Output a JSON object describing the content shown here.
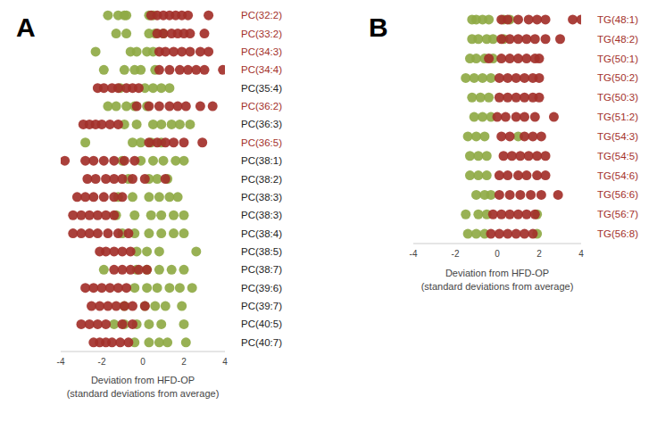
{
  "chart_data": [
    {
      "type": "scatter",
      "title": "A",
      "xlabel": [
        "Deviation from HFD-OP",
        "(standard deviations from average)"
      ],
      "xlim": [
        -4,
        4
      ],
      "xticks": [
        -4,
        -2,
        0,
        2,
        4
      ],
      "categories": [
        "PC(32:2)",
        "PC(33:2)",
        "PC(34:3)",
        "PC(34:4)",
        "PC(35:4)",
        "PC(36:2)",
        "PC(36:3)",
        "PC(36:5)",
        "PC(38:1)",
        "PC(38:2)",
        "PC(38:3)",
        "PC(38:3)",
        "PC(38:4)",
        "PC(38:5)",
        "PC(38:7)",
        "PC(39:6)",
        "PC(39:7)",
        "PC(40:5)",
        "PC(40:7)"
      ],
      "series": [
        {
          "color": "#8faa45",
          "values": [
            [
              -1.7,
              -1.2,
              -0.9,
              -0.8,
              0.3,
              0.5
            ],
            [
              -1.3,
              -0.8,
              0.3,
              0.6,
              1.0
            ],
            [
              -2.3,
              -0.6,
              -0.3,
              0.2,
              0.5
            ],
            [
              -1.9,
              -0.9,
              -0.4,
              -0.1,
              0.6
            ],
            [
              -1.1,
              0.1,
              0.5,
              0.9,
              1.3
            ],
            [
              -1.7,
              -1.3,
              -0.8,
              -0.4,
              0.2
            ],
            [
              -0.9,
              -0.3,
              0.5,
              0.9,
              1.4,
              1.8,
              2.3
            ],
            [
              -2.8,
              -0.5,
              -0.1,
              0.4,
              0.9
            ],
            [
              -1.0,
              -0.1,
              0.5,
              1.0,
              1.6,
              2.0
            ],
            [
              -0.7,
              0.3,
              0.7,
              1.2
            ],
            [
              -1.2,
              -0.5,
              0.3,
              0.8,
              1.3,
              1.7
            ],
            [
              -1.3,
              -0.4,
              0.4,
              0.9,
              1.5,
              2.0
            ],
            [
              -1.0,
              -0.4,
              0.3,
              0.9,
              1.5,
              2.0
            ],
            [
              -0.3,
              0.2,
              0.8,
              2.6
            ],
            [
              -1.9,
              -0.3,
              0.2,
              0.8,
              1.4,
              2.0
            ],
            [
              -0.4,
              0.2,
              0.7,
              1.3,
              1.8,
              2.4
            ],
            [
              -0.9,
              0.1,
              0.6,
              1.1,
              1.9
            ],
            [
              -1.4,
              -0.9,
              -0.3,
              0.3,
              0.9,
              2.0
            ],
            [
              -0.4,
              0.3,
              0.8,
              1.2,
              2.1
            ]
          ]
        },
        {
          "color": "#a3302a",
          "values": [
            [
              0.4,
              0.7,
              1.0,
              1.3,
              1.6,
              1.9,
              2.2,
              3.2
            ],
            [
              0.7,
              1.0,
              1.4,
              1.7,
              2.0,
              2.3,
              3.0
            ],
            [
              0.8,
              1.1,
              1.5,
              1.9,
              2.3,
              2.8,
              3.2
            ],
            [
              0.8,
              1.3,
              1.8,
              2.2,
              2.6,
              3.0,
              3.9
            ],
            [
              -2.2,
              -1.9,
              -1.5,
              -1.2,
              -0.8,
              -0.5,
              -0.2
            ],
            [
              -0.3,
              0.3,
              0.8,
              1.3,
              1.7,
              2.1,
              2.8,
              3.4
            ],
            [
              -2.9,
              -2.6,
              -2.3,
              -2.0,
              -1.6,
              -1.2
            ],
            [
              0.3,
              0.7,
              1.1,
              1.5,
              2.0,
              2.9
            ],
            [
              -3.8,
              -2.8,
              -2.4,
              -1.9,
              -1.4,
              -0.9,
              -0.4
            ],
            [
              -2.7,
              -2.3,
              -1.8,
              -1.4,
              -1.0,
              -0.5,
              0.1,
              1.1
            ],
            [
              -3.2,
              -2.8,
              -2.4,
              -1.9,
              -1.4,
              -1.0
            ],
            [
              -3.4,
              -3.0,
              -2.6,
              -2.2,
              -1.8,
              -1.4
            ],
            [
              -3.4,
              -3.0,
              -2.6,
              -2.2,
              -1.7,
              -1.2,
              -0.7
            ],
            [
              -2.1,
              -1.8,
              -1.4,
              -1.0,
              -0.6
            ],
            [
              -1.4,
              -1.0,
              -0.6,
              -0.2,
              0.2
            ],
            [
              -2.8,
              -2.4,
              -2.0,
              -1.6,
              -1.2,
              -0.8
            ],
            [
              -2.5,
              -2.1,
              -1.7,
              -1.3,
              -0.9,
              -0.5,
              0.1
            ],
            [
              -3.0,
              -2.6,
              -2.2,
              -1.8,
              -1.0,
              -0.5
            ],
            [
              -2.4,
              -2.1,
              -1.8,
              -1.5,
              -1.1,
              -0.7
            ]
          ]
        }
      ]
    },
    {
      "type": "scatter",
      "title": "B",
      "xlabel": [
        "Deviation from HFD-OP",
        "(standard deviations from average)"
      ],
      "xlim": [
        -4,
        4
      ],
      "xticks": [
        -4,
        -2,
        0,
        2,
        4
      ],
      "categories": [
        "TG(48:1)",
        "TG(48:2)",
        "TG(50:1)",
        "TG(50:2)",
        "TG(50:3)",
        "TG(51:2)",
        "TG(54:3)",
        "TG(54:5)",
        "TG(54:6)",
        "TG(56:6)",
        "TG(56:7)",
        "TG(56:8)"
      ],
      "series": [
        {
          "color": "#8faa45",
          "values": [
            [
              -1.2,
              -1.0,
              -0.7,
              -0.4,
              0.3,
              0.6
            ],
            [
              -1.2,
              -0.9,
              -0.5,
              -0.2,
              0.3
            ],
            [
              -1.3,
              -1.0,
              -0.6,
              -0.2
            ],
            [
              -1.5,
              -1.1,
              -0.7,
              -0.3
            ],
            [
              -1.2,
              -0.8,
              -0.4
            ],
            [
              -1.1,
              -0.7,
              -0.3
            ],
            [
              -1.4,
              -1.0,
              -0.6,
              1.0
            ],
            [
              -1.3,
              -0.9,
              -0.5
            ],
            [
              -1.3,
              -0.9,
              -0.5
            ],
            [
              -1.0,
              -0.6,
              -0.3
            ],
            [
              -1.5,
              -0.9,
              -0.5,
              1.9
            ],
            [
              -1.4,
              -1.0,
              -0.6,
              1.9
            ]
          ]
        },
        {
          "color": "#a3302a",
          "values": [
            [
              0.2,
              0.5,
              1.0,
              1.5,
              1.9,
              2.3,
              3.6,
              4.0
            ],
            [
              0.2,
              0.6,
              1.0,
              1.4,
              1.8,
              2.3,
              3.0
            ],
            [
              -0.4,
              0.2,
              0.6,
              1.0,
              1.4,
              1.8,
              2.0
            ],
            [
              0.1,
              0.5,
              0.9,
              1.3,
              1.7,
              2.0
            ],
            [
              0.1,
              0.5,
              0.9,
              1.3,
              1.7,
              2.0
            ],
            [
              0.0,
              0.4,
              0.9,
              1.3,
              1.8,
              2.7
            ],
            [
              0.2,
              0.6,
              1.3,
              1.7,
              2.1
            ],
            [
              0.3,
              0.7,
              1.1,
              1.5,
              1.9,
              2.3
            ],
            [
              0.1,
              0.5,
              1.0,
              1.4,
              1.9,
              2.3
            ],
            [
              0.1,
              0.6,
              1.1,
              1.6,
              2.1,
              2.9
            ],
            [
              -0.2,
              0.2,
              0.6,
              1.0,
              1.4,
              1.8
            ],
            [
              -0.3,
              0.1,
              0.5,
              0.9,
              1.3,
              1.7
            ]
          ]
        }
      ]
    }
  ]
}
